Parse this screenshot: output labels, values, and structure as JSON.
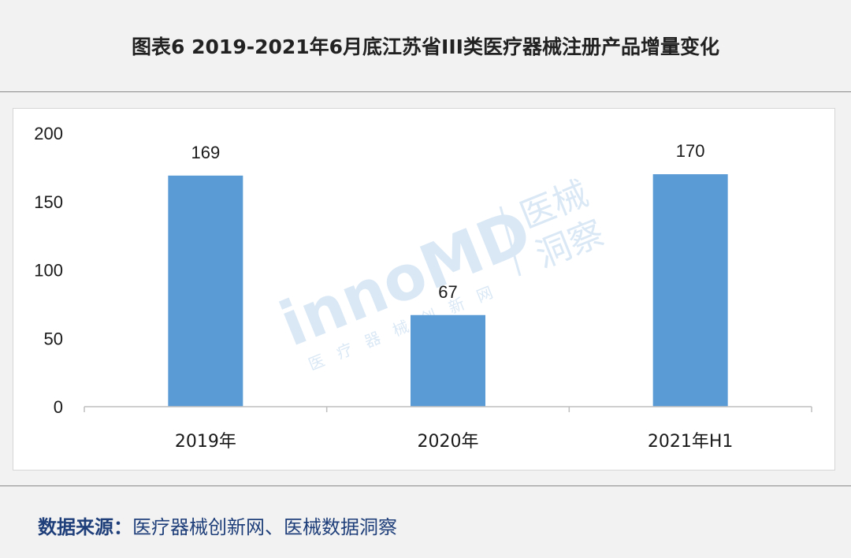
{
  "title": "图表6  2019-2021年6月底江苏省III类医疗器械注册产品增量变化",
  "source": {
    "label": "数据来源：",
    "text": "医疗器械创新网、医械数据洞察"
  },
  "watermark": {
    "brand": "innoMD",
    "brand_sub": "医 疗 器 械 创 新 网",
    "right_top": "医械",
    "right_bottom": "洞察"
  },
  "colors": {
    "bar": "#5b9bd5",
    "axis": "#bfbfbf",
    "text": "#1a1a1a",
    "source": "#1f3f7a"
  },
  "chart_data": {
    "type": "bar",
    "categories": [
      "2019年",
      "2020年",
      "2021年H1"
    ],
    "values": [
      169,
      67,
      170
    ],
    "ylim": [
      0,
      200
    ],
    "yticks": [
      0,
      50,
      100,
      150,
      200
    ],
    "grid": false,
    "data_labels": true,
    "title": "",
    "xlabel": "",
    "ylabel": ""
  }
}
